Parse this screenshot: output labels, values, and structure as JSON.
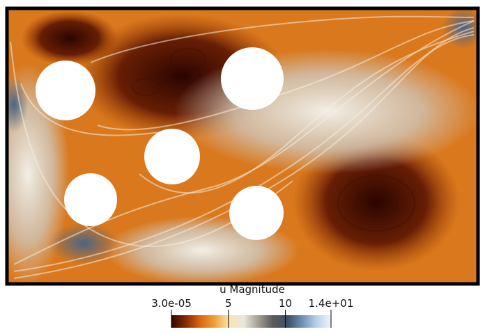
{
  "colorbar": {
    "title": "u Magnitude",
    "range": [
      3e-05,
      14
    ],
    "ticks": [
      {
        "value": 3e-05,
        "label": "3.0e-05"
      },
      5,
      10,
      {
        "value": 14,
        "label": "1.4e+01"
      }
    ],
    "colors": [
      "#2e0600",
      "#8a2a02",
      "#d96a10",
      "#f2a23a",
      "#f7e6b0",
      "#e9e6dc",
      "#a39d93",
      "#5a5a5e",
      "#3d4e66",
      "#6f8fb5",
      "#b9d0e8",
      "#eef5fb"
    ]
  }
}
